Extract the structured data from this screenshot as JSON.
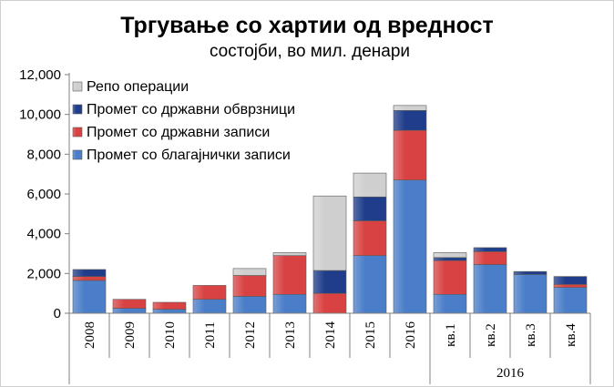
{
  "chart_data": {
    "type": "bar",
    "stacked": true,
    "title": "Тргување со хартии од вредност",
    "subtitle": "состојби, во мил. денари",
    "categories": [
      "2008",
      "2009",
      "2010",
      "2011",
      "2012",
      "2013",
      "2014",
      "2015",
      "2016",
      "кв.1",
      "кв.2",
      "кв.3",
      "кв.4"
    ],
    "category_group": {
      "label": "2016",
      "from_index": 9,
      "to_index": 12
    },
    "series": [
      {
        "name": "Промет со благајнички записи",
        "color": "#4a7ec9",
        "values": [
          1650,
          250,
          200,
          700,
          850,
          950,
          0,
          2900,
          6700,
          950,
          2450,
          1950,
          1300
        ]
      },
      {
        "name": "Промет со државни записи",
        "color": "#d94242",
        "values": [
          200,
          450,
          350,
          700,
          1050,
          1950,
          1000,
          1750,
          2500,
          1700,
          650,
          0,
          150
        ]
      },
      {
        "name": "Промет со државни обврзници",
        "color": "#1f3d8a",
        "values": [
          350,
          0,
          0,
          0,
          0,
          0,
          1150,
          1200,
          1000,
          150,
          200,
          150,
          400
        ]
      },
      {
        "name": "Репо операции",
        "color": "#cfcfcf",
        "values": [
          0,
          0,
          0,
          0,
          350,
          150,
          3750,
          1200,
          250,
          250,
          0,
          0,
          0
        ]
      }
    ],
    "legend_order": [
      "Репо операции",
      "Промет со државни обврзници",
      "Промет со државни записи",
      "Промет со благајнички записи"
    ],
    "legend_position": "top-left",
    "ylim": [
      0,
      12000
    ],
    "yticks": [
      0,
      2000,
      4000,
      6000,
      8000,
      10000,
      12000
    ],
    "ytick_labels": [
      "0",
      "2,000",
      "4,000",
      "6,000",
      "8,000",
      "10,000",
      "12,000"
    ],
    "grid": false
  }
}
